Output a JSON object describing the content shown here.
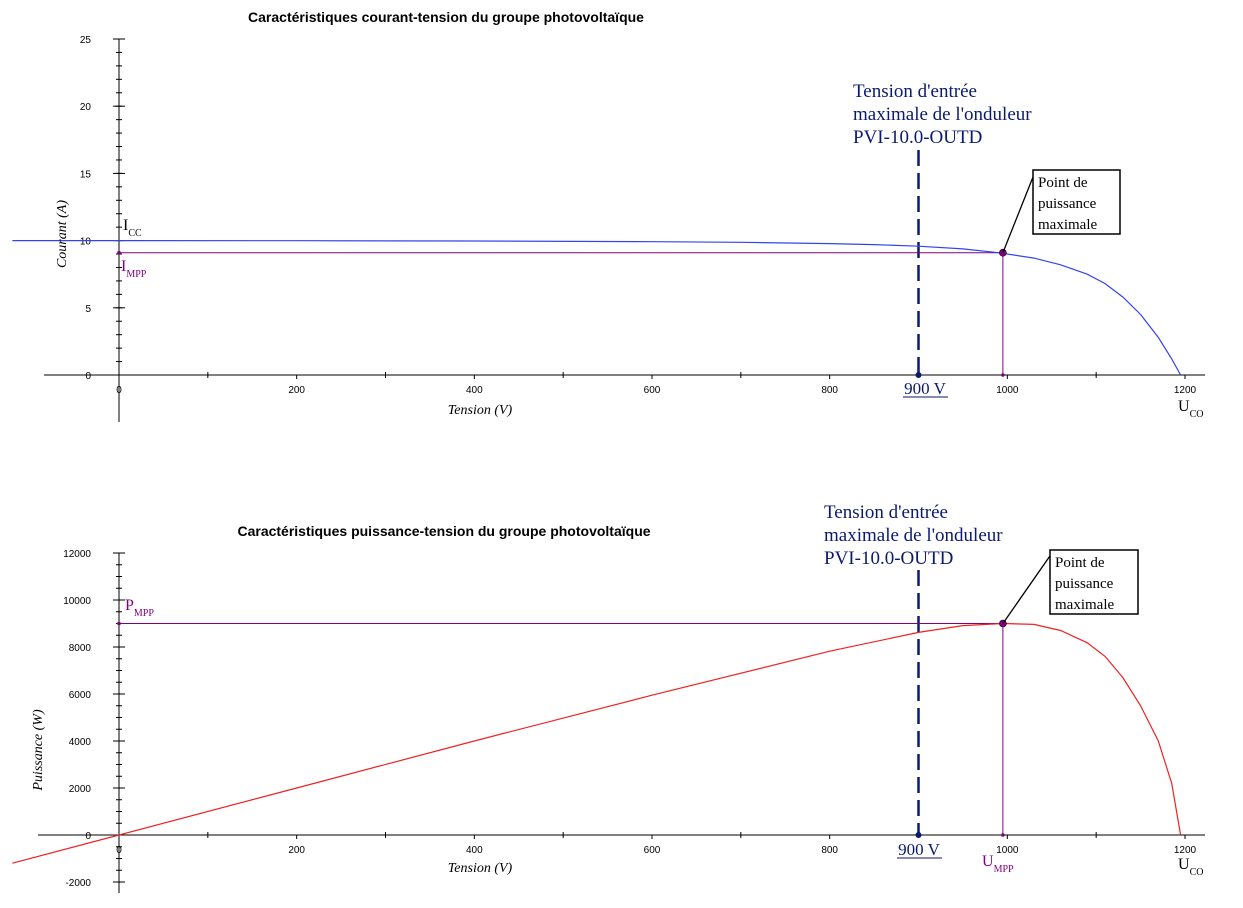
{
  "chart_data": [
    {
      "type": "line",
      "title": "Caractéristiques courant-tension du groupe photovoltaïque",
      "xlabel": "Tension (V)",
      "ylabel": "Courant (A)",
      "xlim": [
        0,
        1200
      ],
      "ylim": [
        0,
        25
      ],
      "x_ticks": [
        "0",
        "200",
        "400",
        "600",
        "800",
        "1000",
        "1200"
      ],
      "y_ticks": [
        "0",
        "5",
        "10",
        "15",
        "20",
        "25"
      ],
      "grid": false,
      "series": [
        {
          "color": "#3344ee",
          "x": [
            -120,
            0,
            200,
            400,
            600,
            700,
            800,
            850,
            900,
            950,
            990,
            1030,
            1060,
            1090,
            1110,
            1130,
            1150,
            1170,
            1185,
            1195
          ],
          "y": [
            10.0,
            10.0,
            9.99,
            9.97,
            9.92,
            9.87,
            9.78,
            9.7,
            9.58,
            9.38,
            9.1,
            8.7,
            8.2,
            7.5,
            6.8,
            5.8,
            4.5,
            2.8,
            1.2,
            0
          ]
        }
      ],
      "vertical_marker": {
        "x": 900,
        "color": "#0a1a6e",
        "label_lines": [
          "Tension d'entrée",
          "maximale de l'onduleur",
          "PVI-10.0-OUTD"
        ],
        "value_label": "900 V"
      },
      "mpp": {
        "x": 995,
        "y": 9.1,
        "color": "#800080"
      },
      "callout_lines": [
        "Point de",
        "puissance",
        "maximale"
      ],
      "labels": {
        "icc": {
          "main": "I",
          "sub": "CC"
        },
        "impp": {
          "main": "I",
          "sub": "MPP"
        },
        "uco": {
          "main": "U",
          "sub": "CO"
        }
      }
    },
    {
      "type": "line",
      "title": "Caractéristiques puissance-tension du groupe photovoltaïque",
      "xlabel": "Tension (V)",
      "ylabel": "Puissance (W)",
      "xlim": [
        0,
        1200
      ],
      "ylim": [
        -2000,
        12000
      ],
      "x_ticks": [
        "0",
        "200",
        "400",
        "600",
        "800",
        "1000",
        "1200"
      ],
      "y_ticks": [
        "-2000",
        "0",
        "2000",
        "4000",
        "6000",
        "8000",
        "10000",
        "12000"
      ],
      "grid": false,
      "series": [
        {
          "color": "#ee2222",
          "x": [
            -120,
            0,
            200,
            400,
            600,
            800,
            900,
            950,
            995,
            1030,
            1060,
            1090,
            1110,
            1130,
            1150,
            1170,
            1185,
            1195
          ],
          "y": [
            -1200,
            0,
            2000,
            4000,
            5950,
            7820,
            8620,
            8910,
            9000,
            8960,
            8700,
            8180,
            7600,
            6700,
            5500,
            4000,
            2200,
            0
          ]
        }
      ],
      "vertical_marker": {
        "x": 900,
        "color": "#0a1a6e",
        "label_lines": [
          "Tension d'entrée",
          "maximale de l'onduleur",
          "PVI-10.0-OUTD"
        ],
        "value_label": "900 V"
      },
      "mpp": {
        "x": 995,
        "y": 9000,
        "color": "#800080"
      },
      "callout_lines": [
        "Point de",
        "puissance",
        "maximale"
      ],
      "labels": {
        "pmpp": {
          "main": "P",
          "sub": "MPP"
        },
        "umpp": {
          "main": "U",
          "sub": "MPP"
        },
        "uco": {
          "main": "U",
          "sub": "CO"
        }
      }
    }
  ]
}
